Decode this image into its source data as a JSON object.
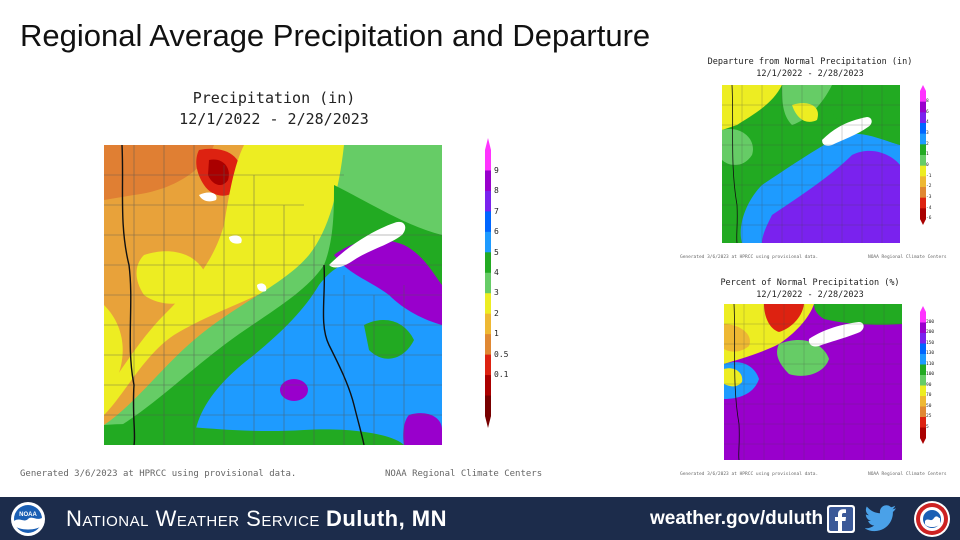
{
  "slide_title": "Regional Average Precipitation and Departure",
  "main_map": {
    "title": "Precipitation (in)",
    "date_range": "12/1/2022 - 2/28/2023",
    "generated": "Generated 3/6/2023 at HPRCC using provisional data.",
    "credit": "NOAA Regional Climate Centers",
    "legend_labels": [
      "9",
      "8",
      "7",
      "6",
      "5",
      "4",
      "3",
      "2",
      "1",
      "0.5",
      "0.1"
    ],
    "legend_colors": [
      "#ff33ff",
      "#9900cc",
      "#7a22ee",
      "#0066ff",
      "#1e9bff",
      "#22aa22",
      "#66cc66",
      "#eded22",
      "#eeb833",
      "#e08833",
      "#dd2211",
      "#aa0000",
      "#770000"
    ]
  },
  "departure_map": {
    "title": "Departure from Normal Precipitation (in)",
    "date_range": "12/1/2022 - 2/28/2023",
    "generated": "Generated 3/6/2023 at HPRCC using provisional data.",
    "credit": "NOAA Regional Climate Centers",
    "legend_labels": [
      "8",
      "6",
      "4",
      "3",
      "2",
      "1",
      "0",
      "-1",
      "-2",
      "-3",
      "-4",
      "-6"
    ],
    "legend_colors": [
      "#ff33ff",
      "#9900cc",
      "#7a22ee",
      "#0066ff",
      "#1e9bff",
      "#22aa22",
      "#66cc66",
      "#eded22",
      "#eeb833",
      "#e08833",
      "#dd2211",
      "#aa0000"
    ]
  },
  "percent_map": {
    "title": "Percent of Normal Precipitation (%)",
    "date_range": "12/1/2022 - 2/28/2023",
    "generated": "Generated 3/6/2023 at HPRCC using provisional data.",
    "credit": "NOAA Regional Climate Centers",
    "legend_labels": [
      "200",
      "200",
      "150",
      "130",
      "110",
      "100",
      "90",
      "70",
      "50",
      "25",
      "5"
    ],
    "legend_colors": [
      "#ff33ff",
      "#9900cc",
      "#7a22ee",
      "#0066ff",
      "#1e9bff",
      "#22aa22",
      "#66cc66",
      "#eded22",
      "#eeb833",
      "#e08833",
      "#dd2211",
      "#aa0000"
    ]
  },
  "footer": {
    "agency_prefix": "National Weather Service",
    "agency_office": "Duluth, MN",
    "website": "weather.gov/duluth",
    "noaa_logo_text": "NOAA"
  },
  "icons": [
    "noaa-logo-icon",
    "facebook-icon",
    "twitter-icon",
    "nws-logo-icon"
  ]
}
